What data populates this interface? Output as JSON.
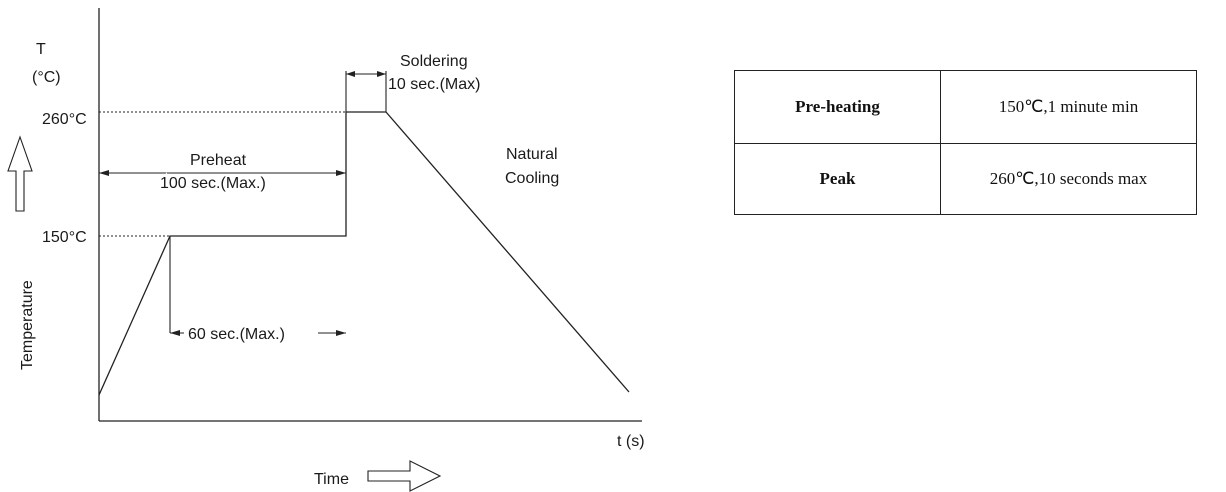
{
  "diagram": {
    "y_axis_symbol": "T",
    "y_axis_unit": "(°C)",
    "y_axis_label": "Temperature",
    "x_axis_label": "t (s)",
    "time_label": "Time",
    "temp_260_label": "260°C",
    "temp_150_label": "150°C",
    "soldering_label": "Soldering",
    "soldering_time_label": "10 sec.(Max)",
    "preheat_label": "Preheat",
    "preheat_time_label": "100 sec.(Max.)",
    "cooling_label_line1": "Natural",
    "cooling_label_line2": "Cooling",
    "hold_time_label": "60 sec.(Max.)"
  },
  "table": {
    "rows": [
      {
        "parameter": "Pre-heating",
        "value": "150℃,1 minute min"
      },
      {
        "parameter": "Peak",
        "value": "260℃,10 seconds max"
      }
    ]
  }
}
